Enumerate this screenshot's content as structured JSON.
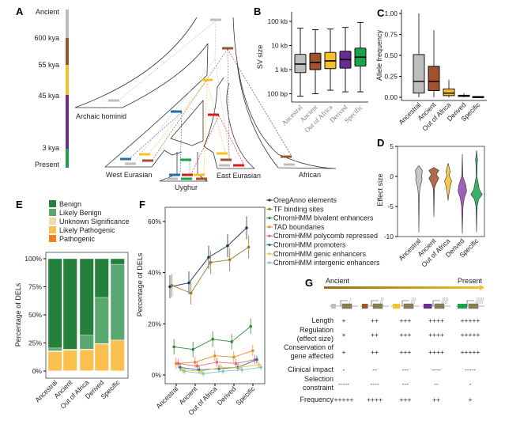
{
  "panels": {
    "a": "A",
    "b": "B",
    "c": "C",
    "d": "D",
    "e": "E",
    "f": "F",
    "g": "G"
  },
  "colors": {
    "Ancestral": "#bdbdbd",
    "Ancient": "#a0522d",
    "Out of Africa": "#f5c02a",
    "Derived": "#6a2c91",
    "Specific": "#1aa34a",
    "red": "#d7191c",
    "blue": "#1f6fb2"
  },
  "panel_a": {
    "timeline": [
      {
        "label": "Ancient",
        "color": "#bdbdbd"
      },
      {
        "label": "600 kya",
        "color": "#a0522d"
      },
      {
        "label": "55 kya",
        "color": "#f5c02a"
      },
      {
        "label": "45 kya",
        "color": "#6a2c91"
      },
      {
        "label": "3 kya",
        "color": "#1aa34a"
      },
      {
        "label": "Present",
        "color": "#1aa34a"
      }
    ],
    "populations": {
      "archaic": "Archaic hominid",
      "west": "West Eurasian",
      "uyghur": "Uyghur",
      "east": "East Eurasian",
      "african": "African"
    }
  },
  "chart_data": [
    {
      "id": "B",
      "type": "box",
      "ylabel": "SV size",
      "yscale": "log",
      "yticks": [
        "100 bp",
        "1 kb",
        "10 kb",
        "100 kb"
      ],
      "categories": [
        "Ancestral",
        "Ancient",
        "Out of Africa",
        "Derived",
        "Specific"
      ],
      "boxes_kb": [
        [
          0.08,
          0.75,
          1.7,
          4.3,
          52
        ],
        [
          0.1,
          1.0,
          2.0,
          4.8,
          45
        ],
        [
          0.14,
          1.1,
          2.3,
          5.2,
          48
        ],
        [
          0.12,
          1.15,
          2.6,
          5.8,
          56
        ],
        [
          0.12,
          1.4,
          3.3,
          7.8,
          90
        ]
      ]
    },
    {
      "id": "C",
      "type": "box",
      "ylabel": "Allele frequency",
      "ylim": [
        0,
        1
      ],
      "yticks": [
        "0.00",
        "0.25",
        "0.50",
        "0.75",
        "1.00"
      ],
      "categories": [
        "Ancestral",
        "Ancient",
        "Out of Africa",
        "Derived",
        "Specific"
      ],
      "boxes": [
        [
          0,
          0.05,
          0.19,
          0.51,
          1.0
        ],
        [
          0,
          0.08,
          0.19,
          0.37,
          0.8
        ],
        [
          0,
          0.02,
          0.05,
          0.1,
          0.21
        ],
        [
          0,
          0.01,
          0.02,
          0.025,
          0.05
        ],
        [
          0,
          0.0,
          0.005,
          0.01,
          0.01
        ]
      ]
    },
    {
      "id": "D",
      "type": "violin",
      "ylabel": "Effect size",
      "ylim": [
        -10,
        5
      ],
      "yticks": [
        "-10",
        "-5",
        "0",
        "5"
      ],
      "categories": [
        "Ancestral",
        "Ancient",
        "Out of Africa",
        "Derived",
        "Specific"
      ],
      "density": [
        [
          [
            1.8,
            0
          ],
          [
            1,
            0.5
          ],
          [
            0,
            0.4
          ],
          [
            -0.5,
            0.45
          ],
          [
            -1.2,
            0.3
          ],
          [
            -2,
            0.15
          ],
          [
            -3,
            0.08
          ],
          [
            -5,
            0.04
          ],
          [
            -9.3,
            0
          ]
        ],
        [
          [
            1.5,
            0
          ],
          [
            1,
            0.7
          ],
          [
            0.3,
            0.35
          ],
          [
            -0.3,
            0.7
          ],
          [
            -1.2,
            0.3
          ],
          [
            -2,
            0.08
          ],
          [
            -6.7,
            0
          ]
        ],
        [
          [
            2.2,
            0
          ],
          [
            0.8,
            0.3
          ],
          [
            0.2,
            0.15
          ],
          [
            -0.8,
            0.5
          ],
          [
            -1.6,
            0.3
          ],
          [
            -3,
            0.1
          ],
          [
            -4,
            0
          ]
        ],
        [
          [
            3.7,
            0
          ],
          [
            0,
            0.08
          ],
          [
            -1.5,
            0.5
          ],
          [
            -2.5,
            0.6
          ],
          [
            -3.5,
            0.3
          ],
          [
            -5,
            0.1
          ],
          [
            -9.5,
            0
          ]
        ],
        [
          [
            4.3,
            0
          ],
          [
            2.7,
            0.15
          ],
          [
            2.3,
            0.1
          ],
          [
            0,
            0.05
          ],
          [
            -2.2,
            0.4
          ],
          [
            -3,
            0.8
          ],
          [
            -3.8,
            0.3
          ],
          [
            -5,
            0.08
          ],
          [
            -9.3,
            0
          ]
        ]
      ]
    },
    {
      "id": "E",
      "type": "stacked-bar",
      "ylabel": "Percentage of DELs",
      "yticks": [
        "0%",
        "25%",
        "50%",
        "75%",
        "100%"
      ],
      "categories": [
        "Ancestral",
        "Ancient",
        "Out of Africa",
        "Derived",
        "Specific"
      ],
      "series": [
        {
          "name": "Pathogenic",
          "color": "#f57f17",
          "values": [
            0.5,
            0.3,
            0.3,
            0.3,
            0.2
          ]
        },
        {
          "name": "Likely Pathogenic",
          "color": "#fbbf4e",
          "values": [
            16.5,
            18.2,
            18.7,
            23.7,
            27.3
          ]
        },
        {
          "name": "Unknown Significance",
          "color": "#f0dca8",
          "values": [
            1,
            0.5,
            0.5,
            0.5,
            0.1
          ]
        },
        {
          "name": "Likely Benign",
          "color": "#5aa870",
          "values": [
            2.5,
            0.5,
            12.5,
            41,
            67.4
          ]
        },
        {
          "name": "Benign",
          "color": "#24803a",
          "values": [
            79.5,
            80.5,
            68,
            34.5,
            5
          ]
        }
      ],
      "legend_order": [
        "Benign",
        "Likely Benign",
        "Unknown Significance",
        "Likely Pathogenic",
        "Pathogenic"
      ]
    },
    {
      "id": "F",
      "type": "line",
      "ylabel": "Percentage of DELs",
      "ylim": [
        0,
        65
      ],
      "yticks": [
        "0%",
        "20%",
        "40%",
        "60%"
      ],
      "categories": [
        "Ancestral",
        "Ancient",
        "Out of Africa",
        "Derived",
        "Specific"
      ],
      "series": [
        {
          "name": "OregAnno elements",
          "color": "#1b3a57",
          "values": [
            34.5,
            36,
            46,
            50.5,
            57.5
          ],
          "err": 4.5
        },
        {
          "name": "TF binding sites",
          "color": "#9a7a2a",
          "values": [
            35,
            32,
            44,
            45,
            50
          ],
          "err": 4.5
        },
        {
          "name": "ChromHMM bivalent enhancers",
          "color": "#2e8b3a",
          "values": [
            11,
            10,
            14,
            13,
            19
          ],
          "err": 3
        },
        {
          "name": "TAD boundaries",
          "color": "#f08a2a",
          "values": [
            4.5,
            5,
            7.5,
            7,
            9.5
          ],
          "err": 2.2
        },
        {
          "name": "ChromHMM polycomb repressed",
          "color": "#e56b6b",
          "values": [
            4.5,
            3.5,
            5,
            4.5,
            6
          ],
          "err": 1.8
        },
        {
          "name": "ChromHMM promoters",
          "color": "#2e6f9e",
          "values": [
            3,
            2,
            2.5,
            3,
            6
          ],
          "err": 1.5
        },
        {
          "name": "ChromHMM genic enhancers",
          "color": "#f5c242",
          "values": [
            2,
            1.5,
            3,
            3,
            4
          ],
          "err": 1.3
        },
        {
          "name": "ChromHMM intergenic enhancers",
          "color": "#7fc8c0",
          "values": [
            1.5,
            0.5,
            1.5,
            2,
            3
          ],
          "err": 1.2
        }
      ]
    }
  ],
  "panel_g": {
    "start": "Ancient",
    "end": "Present",
    "rows": [
      {
        "label": [
          "Length"
        ],
        "values": [
          "+",
          "++",
          "+++",
          "++++",
          "+++++"
        ]
      },
      {
        "label": [
          "Regulation",
          "(effect size)"
        ],
        "values": [
          "+",
          "++",
          "+++",
          "++++",
          "+++++"
        ]
      },
      {
        "label": [
          "Conservation of",
          "gene affected"
        ],
        "values": [
          "+",
          "++",
          "+++",
          "++++",
          "+++++"
        ]
      },
      {
        "label": [
          "Clinical impact"
        ],
        "values": [
          "-",
          "--",
          "---",
          "----",
          "-----"
        ]
      },
      {
        "label": [
          "Selection",
          "constraint"
        ],
        "values": [
          "-----",
          "----",
          "---",
          "--",
          "-"
        ]
      },
      {
        "label": [
          "Frequency"
        ],
        "values": [
          "+++++",
          "++++",
          "+++",
          "++",
          "+"
        ]
      }
    ]
  }
}
